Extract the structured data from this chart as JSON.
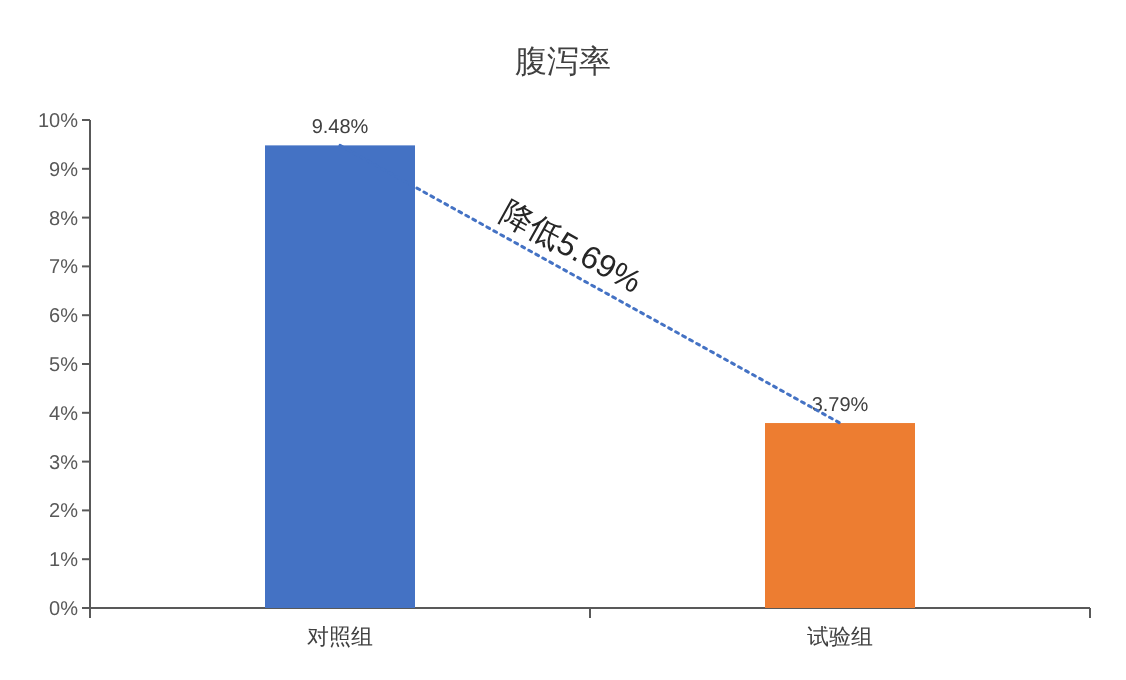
{
  "chart_data": {
    "type": "bar",
    "title": "腹泻率",
    "categories": [
      "对照组",
      "试验组"
    ],
    "series": [
      {
        "values": [
          9.48,
          3.79
        ],
        "colors": [
          "#4472c4",
          "#ed7d31"
        ],
        "value_labels": [
          "9.48%",
          "3.79%"
        ]
      },
      {
        "type": "line",
        "values": [
          9.48,
          3.79
        ],
        "color": "#4472c4",
        "line_style": "dotted"
      }
    ],
    "ylim": [
      0,
      10
    ],
    "yticks": [
      {
        "value": 0,
        "label": "0%"
      },
      {
        "value": 1,
        "label": "1%"
      },
      {
        "value": 2,
        "label": "2%"
      },
      {
        "value": 3,
        "label": "3%"
      },
      {
        "value": 4,
        "label": "4%"
      },
      {
        "value": 5,
        "label": "5%"
      },
      {
        "value": 6,
        "label": "6%"
      },
      {
        "value": 7,
        "label": "7%"
      },
      {
        "value": 8,
        "label": "8%"
      },
      {
        "value": 9,
        "label": "9%"
      },
      {
        "value": 10,
        "label": "10%"
      }
    ],
    "annotations": [
      "降低5.69%"
    ],
    "grid": false
  }
}
